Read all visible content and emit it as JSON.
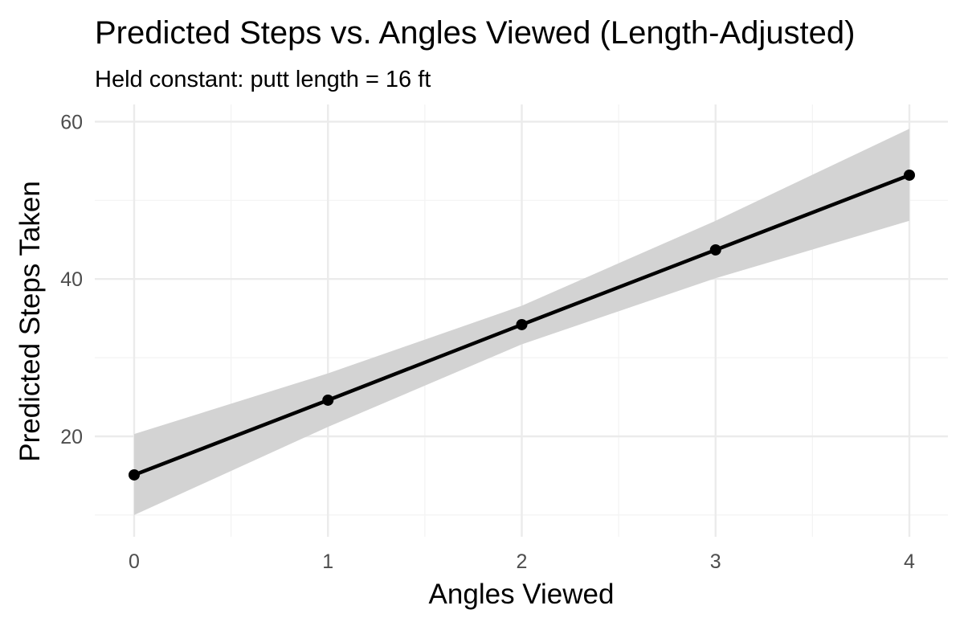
{
  "chart_data": {
    "type": "line",
    "title": "Predicted Steps vs. Angles Viewed (Length-Adjusted)",
    "subtitle": "Held constant: putt length = 16 ft",
    "xlabel": "Angles Viewed",
    "ylabel": "Predicted Steps Taken",
    "x": [
      0,
      1,
      2,
      3,
      4
    ],
    "series": [
      {
        "values": [
          15.1,
          24.6,
          34.2,
          43.7,
          53.2
        ],
        "ci_lower": [
          10.0,
          21.2,
          31.7,
          40.1,
          47.4
        ],
        "ci_upper": [
          20.3,
          28.0,
          36.6,
          47.4,
          59.1
        ]
      }
    ],
    "xlim": [
      0,
      4
    ],
    "ylim": [
      8,
      62
    ],
    "x_ticks": [
      0,
      1,
      2,
      3,
      4
    ],
    "y_ticks": [
      20,
      40,
      60
    ],
    "grid": true,
    "colors": {
      "line": "#000000",
      "point": "#000000",
      "ribbon": "#d3d3d3",
      "grid_major": "#ebebeb",
      "grid_minor": "#f3f3f3",
      "tick_text": "#4d4d4d"
    }
  }
}
